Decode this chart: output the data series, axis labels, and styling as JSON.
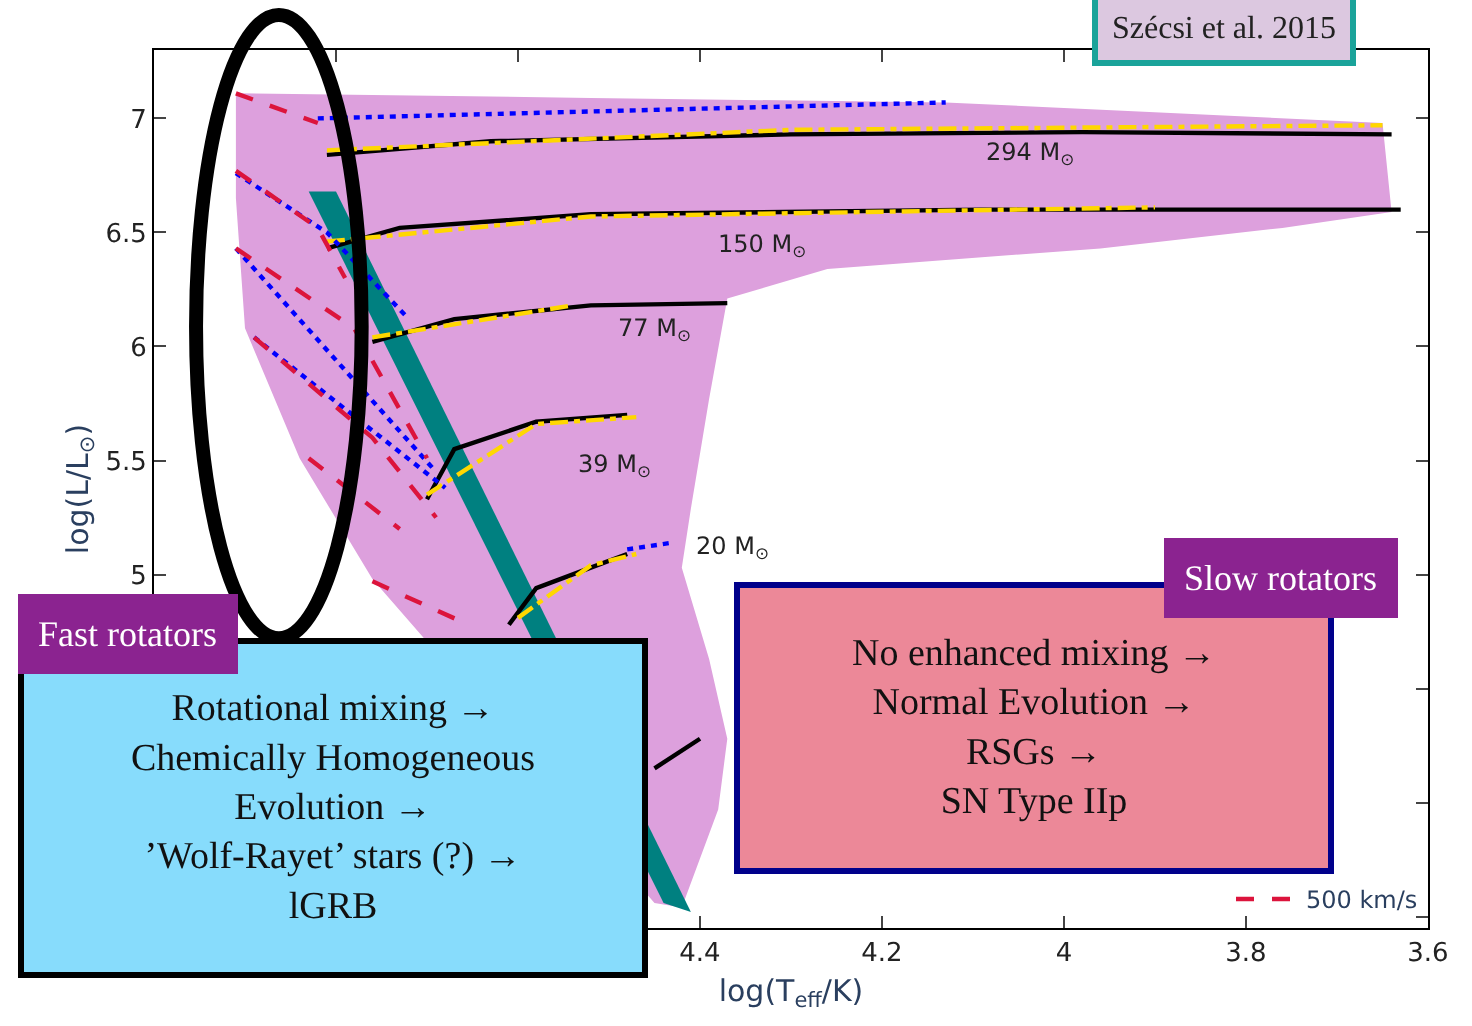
{
  "chart_data": {
    "type": "line",
    "xlabel": "log(T$_{eff}$/K)",
    "ylabel": "log(L/L$_{⊙}$)",
    "xlim": [
      5.0,
      3.6
    ],
    "xticks": [
      {
        "value": 4.8,
        "label": null
      },
      {
        "value": 4.6,
        "label": null
      },
      4.4,
      4.2,
      4,
      3.8,
      3.6
    ],
    "ylim": [
      3.45,
      7.3
    ],
    "yticks": [
      {
        "value": 3.5,
        "label": null
      },
      {
        "value": 4,
        "label": null
      },
      {
        "value": 4.5,
        "label": null
      },
      5,
      5.5,
      6,
      6.5,
      7
    ],
    "grid": false,
    "legend": "bottom right",
    "series": [
      {
        "type": "area",
        "color": "#dda0dd",
        "x": [
          4.91,
          4.52,
          4.13,
          3.65,
          3.64,
          3.76,
          3.96,
          4.26,
          4.37,
          4.39,
          4.41,
          4.42,
          4.39,
          4.37,
          4.38,
          4.42,
          4.45,
          4.76,
          4.84,
          4.9,
          4.91,
          4.91
        ],
        "values": [
          7.11,
          7.09,
          7.07,
          6.98,
          6.59,
          6.52,
          6.43,
          6.34,
          6.21,
          5.77,
          5.29,
          5.03,
          4.63,
          4.28,
          3.97,
          3.54,
          3.56,
          4.98,
          5.51,
          6.08,
          6.65,
          7.11
        ]
      },
      {
        "type": "area",
        "color": "#008080",
        "x": [
          4.83,
          4.8,
          4.41,
          4.44,
          4.83
        ],
        "values": [
          6.68,
          6.68,
          3.52,
          3.56,
          6.68
        ]
      },
      {
        "color": "#000000",
        "line_style": "solid",
        "x": [
          4.81,
          4.63,
          4.3,
          3.98,
          3.64,
          null,
          4.81,
          4.73,
          4.52,
          4.09,
          3.63,
          null,
          4.76,
          4.67,
          4.52,
          4.37,
          null,
          4.7,
          4.67,
          4.58,
          4.48,
          null,
          4.61,
          4.58,
          4.52,
          4.48,
          null,
          4.45,
          4.4
        ],
        "values": [
          6.84,
          6.9,
          6.93,
          6.94,
          6.93,
          null,
          6.43,
          6.52,
          6.58,
          6.6,
          6.6,
          null,
          6.02,
          6.12,
          6.18,
          6.19,
          null,
          5.33,
          5.55,
          5.67,
          5.7,
          null,
          4.78,
          4.94,
          5.03,
          5.09,
          null,
          4.15,
          4.28
        ]
      },
      {
        "color": "#ffd700",
        "line_style": "dashdot",
        "x": [
          4.81,
          4.3,
          3.65,
          null,
          4.81,
          4.52,
          3.9,
          null,
          4.76,
          4.54,
          null,
          4.7,
          4.58,
          4.47,
          null,
          4.6,
          4.52,
          4.47
        ],
        "values": [
          6.86,
          6.95,
          6.97,
          null,
          6.46,
          6.57,
          6.61,
          null,
          6.04,
          6.18,
          null,
          5.35,
          5.66,
          5.69,
          null,
          4.81,
          5.04,
          5.09
        ]
      },
      {
        "color": "#0000ff",
        "line_style": "dotted",
        "x": [
          4.82,
          4.13,
          null,
          4.91,
          4.81,
          4.72,
          null,
          4.91,
          4.69,
          null,
          4.89,
          4.68,
          null,
          4.48,
          4.43
        ],
        "values": [
          7.0,
          7.07,
          null,
          6.76,
          6.5,
          6.12,
          null,
          6.43,
          5.45,
          null,
          6.04,
          5.38,
          null,
          5.11,
          5.14
        ]
      },
      {
        "name": "500 km/s",
        "color": "#dc143c",
        "line_style": "dashed",
        "x": [
          4.91,
          4.82,
          null,
          4.91,
          4.82,
          4.79,
          null,
          4.91,
          4.78,
          4.7,
          null,
          4.89,
          4.76,
          4.69,
          null,
          4.83,
          4.73,
          null,
          4.76,
          4.66
        ],
        "values": [
          7.11,
          6.98,
          null,
          6.77,
          6.52,
          6.3,
          null,
          6.43,
          6.08,
          5.51,
          null,
          6.04,
          5.6,
          5.25,
          null,
          5.51,
          5.2,
          null,
          4.97,
          4.79
        ]
      }
    ],
    "annotations": [
      "294 M$_{⊙}$",
      "150 M$_{⊙}$",
      "77 M$_{⊙}$",
      "39 M$_{⊙}$",
      "20 M$_{⊙}$",
      "Rotational mixing →\nChemically Homogeneous\nEvolution →\n’Wolf-Rayet’ stars (?) →\nlGRB",
      "No enhanced mixing →\nNormal Evolution →\nRSGs →\nSN Type IIp",
      "Fast rotators",
      "Slow rotators",
      "Szécsi et al. 2015"
    ]
  }
}
